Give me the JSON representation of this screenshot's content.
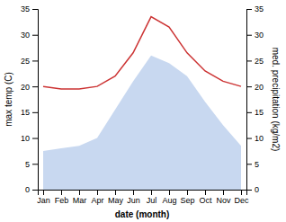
{
  "chart_data": {
    "type": "line",
    "categories": [
      "Jan",
      "Feb",
      "Mar",
      "Apr",
      "May",
      "Jun",
      "Jul",
      "Aug",
      "Sep",
      "Oct",
      "Nov",
      "Dec"
    ],
    "series": [
      {
        "type": "area",
        "color": "#c8d8f0",
        "values": [
          7.5,
          8.0,
          8.5,
          10.0,
          15.5,
          21.0,
          26.0,
          24.5,
          22.0,
          17.0,
          12.5,
          8.5
        ]
      },
      {
        "type": "line",
        "color": "#cc3333",
        "values": [
          20.0,
          19.5,
          19.5,
          20.0,
          22.0,
          26.5,
          33.5,
          31.5,
          26.5,
          23.0,
          21.0,
          20.0
        ]
      }
    ],
    "xlabel": "date (month)",
    "ylabel": "max temp (C)",
    "y2label": "med. precipitation (kg/m2)",
    "ylim": [
      0,
      35
    ],
    "yticks": [
      0,
      5,
      10,
      15,
      20,
      25,
      30,
      35
    ],
    "y2lim": [
      0,
      35
    ],
    "y2ticks": [
      0,
      5,
      10,
      15,
      20,
      25,
      30,
      35
    ]
  }
}
